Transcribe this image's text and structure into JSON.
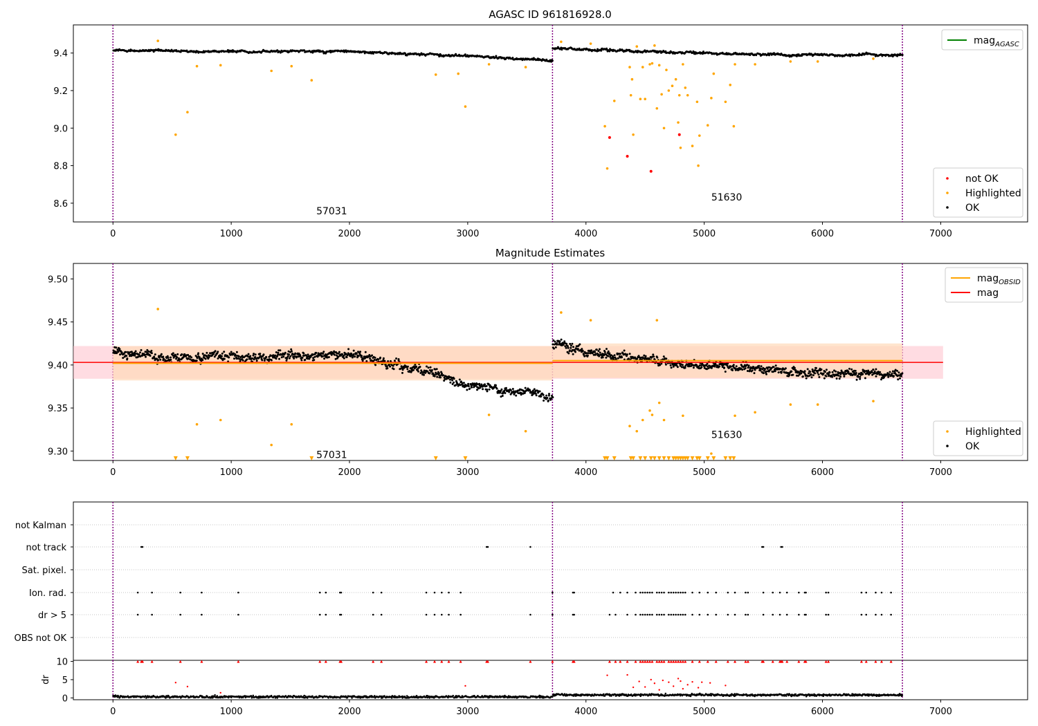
{
  "figure": {
    "colors": {
      "ok": "#000000",
      "highlighted": "#ffa500",
      "not_ok": "#ff0000",
      "mag_agasc": "#008000",
      "mag_obsid": "#ffa500",
      "mag": "#ff0000",
      "obs_boundary": "#800080",
      "band_mag": "#ffc0cb",
      "band_obsid": "#ffdab9",
      "hgrid": "#b0b0b0"
    }
  },
  "chart_data": [
    {
      "type": "scatter",
      "title": "AGASC ID 961816928.0",
      "xlabel": "",
      "ylabel": "",
      "xlim": [
        -335,
        7735
      ],
      "ylim": [
        8.5,
        9.55
      ],
      "xticks": [
        0,
        1000,
        2000,
        3000,
        4000,
        5000,
        6000,
        7000
      ],
      "yticks": [
        8.6,
        8.8,
        9.0,
        9.2,
        9.4
      ],
      "obs_boundaries": [
        0,
        3717,
        6676
      ],
      "obsids": [
        {
          "label": "57031",
          "x": 1850,
          "y": 8.54
        },
        {
          "label": "51630",
          "x": 5190,
          "y": 8.615
        }
      ],
      "legends": [
        {
          "position": "top-right",
          "entries": [
            {
              "label": "mag",
              "sub": "AGASC",
              "kind": "line",
              "color": "#008000"
            }
          ]
        },
        {
          "position": "bottom-right",
          "entries": [
            {
              "label": "not OK",
              "kind": "dot",
              "color": "#ff0000"
            },
            {
              "label": "Highlighted",
              "kind": "dot",
              "color": "#ffa500"
            },
            {
              "label": "OK",
              "kind": "dot",
              "color": "#000000"
            }
          ]
        }
      ],
      "series": [
        {
          "name": "OK",
          "style": "band",
          "segments": [
            {
              "x": [
                0,
                500,
                1000,
                1500,
                2000,
                2500,
                3000,
                3300,
                3717
              ],
              "y": [
                9.415,
                9.41,
                9.408,
                9.41,
                9.41,
                9.395,
                9.385,
                9.375,
                9.36
              ]
            },
            {
              "x": [
                3717,
                4200,
                4700,
                5200,
                5700,
                6200,
                6676
              ],
              "y": [
                9.425,
                9.415,
                9.405,
                9.395,
                9.39,
                9.39,
                9.39
              ]
            }
          ]
        },
        {
          "name": "Highlighted",
          "color": "#ffa500",
          "x": [
            380,
            530,
            630,
            710,
            910,
            1340,
            1510,
            1680,
            2730,
            2920,
            2980,
            3180,
            3490,
            3790,
            4040,
            4160,
            4180,
            4240,
            4370,
            4380,
            4390,
            4400,
            4430,
            4460,
            4480,
            4500,
            4540,
            4560,
            4580,
            4600,
            4620,
            4640,
            4660,
            4680,
            4700,
            4730,
            4760,
            4780,
            4790,
            4800,
            4820,
            4840,
            4860,
            4900,
            4940,
            4950,
            4960,
            5030,
            5060,
            5080,
            5180,
            5220,
            5250,
            5260,
            5430,
            5730,
            5960,
            6430
          ],
          "y": [
            9.465,
            8.965,
            9.085,
            9.33,
            9.335,
            9.305,
            9.33,
            9.255,
            9.285,
            9.29,
            9.115,
            9.34,
            9.325,
            9.46,
            9.45,
            9.01,
            8.785,
            9.145,
            9.325,
            9.175,
            9.26,
            8.965,
            9.435,
            9.155,
            9.325,
            9.155,
            9.34,
            9.345,
            9.44,
            9.105,
            9.335,
            9.18,
            9.0,
            9.31,
            9.2,
            9.225,
            9.26,
            9.03,
            9.175,
            8.895,
            9.34,
            9.215,
            9.175,
            8.905,
            9.14,
            8.8,
            8.96,
            9.015,
            9.16,
            9.29,
            9.14,
            9.23,
            9.01,
            9.34,
            9.34,
            9.355,
            9.355,
            9.37
          ]
        },
        {
          "name": "not OK",
          "color": "#ff0000",
          "x": [
            4200,
            4350,
            4550,
            4790
          ],
          "y": [
            8.95,
            8.85,
            8.77,
            8.965
          ]
        }
      ]
    },
    {
      "type": "scatter",
      "title": "Magnitude Estimates",
      "xlabel": "",
      "ylabel": "",
      "xlim": [
        -335,
        7735
      ],
      "ylim": [
        9.289,
        9.518
      ],
      "xticks": [
        0,
        1000,
        2000,
        3000,
        4000,
        5000,
        6000,
        7000
      ],
      "yticks": [
        9.3,
        9.35,
        9.4,
        9.45,
        9.5
      ],
      "obs_boundaries": [
        0,
        3717,
        6676
      ],
      "obsids": [
        {
          "label": "57031",
          "x": 1850,
          "y": 9.292
        },
        {
          "label": "51630",
          "x": 5190,
          "y": 9.315
        }
      ],
      "mag_line": {
        "x": [
          -335,
          7020
        ],
        "y": 9.403,
        "band": [
          9.384,
          9.422
        ]
      },
      "mag_obsid": [
        {
          "x": [
            0,
            3717
          ],
          "y": 9.402,
          "band": [
            9.382,
            9.422
          ]
        },
        {
          "x": [
            3717,
            6676
          ],
          "y": 9.405,
          "band": [
            9.385,
            9.425
          ]
        }
      ],
      "legends": [
        {
          "position": "top-right",
          "entries": [
            {
              "label": "mag",
              "sub": "OBSID",
              "kind": "line",
              "color": "#ffa500"
            },
            {
              "label": "mag",
              "kind": "line",
              "color": "#ff0000"
            }
          ]
        },
        {
          "position": "bottom-right",
          "entries": [
            {
              "label": "Highlighted",
              "kind": "dot",
              "color": "#ffa500"
            },
            {
              "label": "OK",
              "kind": "dot",
              "color": "#000000"
            }
          ]
        }
      ],
      "series": [
        {
          "name": "OK",
          "style": "band",
          "segments": [
            {
              "x": [
                0,
                300,
                600,
                900,
                1200,
                1500,
                1800,
                2100,
                2400,
                2700,
                3000,
                3300,
                3600,
                3717
              ],
              "y": [
                9.415,
                9.41,
                9.408,
                9.41,
                9.408,
                9.41,
                9.412,
                9.41,
                9.4,
                9.39,
                9.375,
                9.37,
                9.368,
                9.362
              ]
            },
            {
              "x": [
                3717,
                4000,
                4300,
                4600,
                4900,
                5200,
                5500,
                5800,
                6100,
                6400,
                6676
              ],
              "y": [
                9.425,
                9.415,
                9.41,
                9.405,
                9.4,
                9.398,
                9.395,
                9.392,
                9.39,
                9.39,
                9.39
              ]
            }
          ]
        },
        {
          "name": "Highlighted",
          "color": "#ffa500",
          "x": [
            380,
            710,
            910,
            1340,
            1510,
            3180,
            3490,
            3790,
            4040,
            4370,
            4430,
            4480,
            4540,
            4560,
            4600,
            4620,
            4660,
            4820,
            5060,
            5260,
            5430,
            5730,
            5960,
            6430
          ],
          "y": [
            9.465,
            9.331,
            9.336,
            9.307,
            9.331,
            9.342,
            9.323,
            9.461,
            9.452,
            9.329,
            9.323,
            9.336,
            9.347,
            9.342,
            9.452,
            9.356,
            9.336,
            9.341,
            9.297,
            9.341,
            9.345,
            9.354,
            9.354,
            9.358
          ]
        },
        {
          "name": "Highlighted (off scale)",
          "color": "#ffa500",
          "marker": "triangle-down",
          "x": [
            530,
            630,
            1680,
            2730,
            2980,
            4160,
            4180,
            4240,
            4380,
            4400,
            4460,
            4500,
            4550,
            4580,
            4620,
            4660,
            4700,
            4740,
            4760,
            4780,
            4800,
            4820,
            4840,
            4860,
            4900,
            4940,
            4960,
            5030,
            5080,
            5180,
            5220,
            5250
          ],
          "y": [
            9.2915,
            9.2915,
            9.2915,
            9.2915,
            9.2915,
            9.2915,
            9.2915,
            9.2915,
            9.2915,
            9.2915,
            9.2915,
            9.2915,
            9.2915,
            9.2915,
            9.2915,
            9.2915,
            9.2915,
            9.2915,
            9.2915,
            9.2915,
            9.2915,
            9.2915,
            9.2915,
            9.2915,
            9.2915,
            9.2915,
            9.2915,
            9.2915,
            9.2915,
            9.2915,
            9.2915,
            9.2915
          ]
        }
      ]
    },
    {
      "type": "scatter",
      "title": "",
      "xlabel": "",
      "ylabel": "",
      "xlim": [
        -335,
        7735
      ],
      "obs_boundaries": [
        0,
        3717,
        6676
      ],
      "categories": [
        "not Kalman",
        "not track",
        "Sat. pixel.",
        "Ion. rad.",
        "dr > 5",
        "OBS not OK"
      ],
      "flags": {
        "not track": [
          240,
          250,
          3160,
          3170,
          3530,
          5490,
          5500,
          5650,
          5660
        ],
        "Ion. rad.": [
          210,
          330,
          570,
          750,
          1060,
          1750,
          1800,
          1920,
          1930,
          2200,
          2270,
          2650,
          2720,
          2780,
          2840,
          2940,
          3717,
          3890,
          3900,
          4230,
          4290,
          4350,
          4420,
          4460,
          4480,
          4500,
          4520,
          4540,
          4560,
          4600,
          4620,
          4640,
          4660,
          4700,
          4720,
          4740,
          4760,
          4780,
          4800,
          4820,
          4840,
          4900,
          4960,
          5030,
          5100,
          5200,
          5260,
          5350,
          5370,
          5500,
          5580,
          5640,
          5700,
          5800,
          5850,
          5860,
          6030,
          6050,
          6330,
          6370,
          6450,
          6500,
          6580
        ],
        "dr > 5": [
          210,
          330,
          570,
          750,
          1060,
          1750,
          1800,
          1920,
          1930,
          2200,
          2270,
          2650,
          2720,
          2780,
          2840,
          2940,
          3530,
          3717,
          3890,
          3900,
          4200,
          4250,
          4350,
          4420,
          4460,
          4480,
          4500,
          4520,
          4540,
          4560,
          4600,
          4620,
          4640,
          4660,
          4700,
          4720,
          4740,
          4760,
          4780,
          4800,
          4820,
          4840,
          4900,
          4960,
          5030,
          5100,
          5200,
          5260,
          5350,
          5370,
          5500,
          5580,
          5640,
          5700,
          5800,
          5850,
          5860,
          6030,
          6050,
          6330,
          6370,
          6450,
          6500,
          6580
        ]
      }
    },
    {
      "type": "scatter",
      "title": "",
      "xlabel": "",
      "ylabel": "dr",
      "xlim": [
        -335,
        7735
      ],
      "ylim": [
        -0.5,
        10.3
      ],
      "xticks": [
        0,
        1000,
        2000,
        3000,
        4000,
        5000,
        6000,
        7000
      ],
      "yticks": [
        0,
        5,
        10
      ],
      "obs_boundaries": [
        0,
        3717,
        6676
      ],
      "series": [
        {
          "name": "OK",
          "color": "#000000",
          "style": "baseline",
          "segments": [
            {
              "x": [
                0,
                3717
              ],
              "y": 0.3
            },
            {
              "x": [
                3717,
                6676
              ],
              "y": 0.8
            }
          ]
        },
        {
          "name": "Highlighted",
          "color": "#ff0000",
          "x": [
            530,
            630,
            910,
            2980,
            4180,
            4350,
            4400,
            4450,
            4500,
            4550,
            4580,
            4620,
            4650,
            4700,
            4740,
            4780,
            4800,
            4820,
            4860,
            4900,
            4950,
            4980,
            5050,
            5180
          ],
          "y": [
            4.2,
            3.1,
            1.4,
            3.3,
            6.2,
            6.3,
            2.9,
            4.5,
            3.0,
            5.0,
            4.0,
            2.2,
            4.8,
            4.3,
            3.2,
            5.3,
            4.6,
            2.5,
            3.6,
            4.4,
            2.8,
            4.3,
            4.1,
            3.4
          ]
        },
        {
          "name": "off scale",
          "color": "#ff0000",
          "marker": "triangle-up",
          "x": [
            210,
            240,
            250,
            330,
            570,
            750,
            1060,
            1750,
            1800,
            1920,
            1930,
            2200,
            2270,
            2650,
            2720,
            2780,
            2840,
            2940,
            3160,
            3170,
            3530,
            3717,
            3890,
            3900,
            4200,
            4250,
            4290,
            4350,
            4420,
            4460,
            4480,
            4500,
            4520,
            4540,
            4560,
            4600,
            4620,
            4640,
            4660,
            4700,
            4720,
            4740,
            4760,
            4780,
            4800,
            4820,
            4840,
            4900,
            4960,
            5030,
            5100,
            5200,
            5260,
            5350,
            5370,
            5490,
            5500,
            5580,
            5640,
            5650,
            5660,
            5700,
            5800,
            5850,
            5860,
            6030,
            6050,
            6330,
            6370,
            6450,
            6500,
            6580
          ],
          "y": 10
        }
      ]
    }
  ]
}
